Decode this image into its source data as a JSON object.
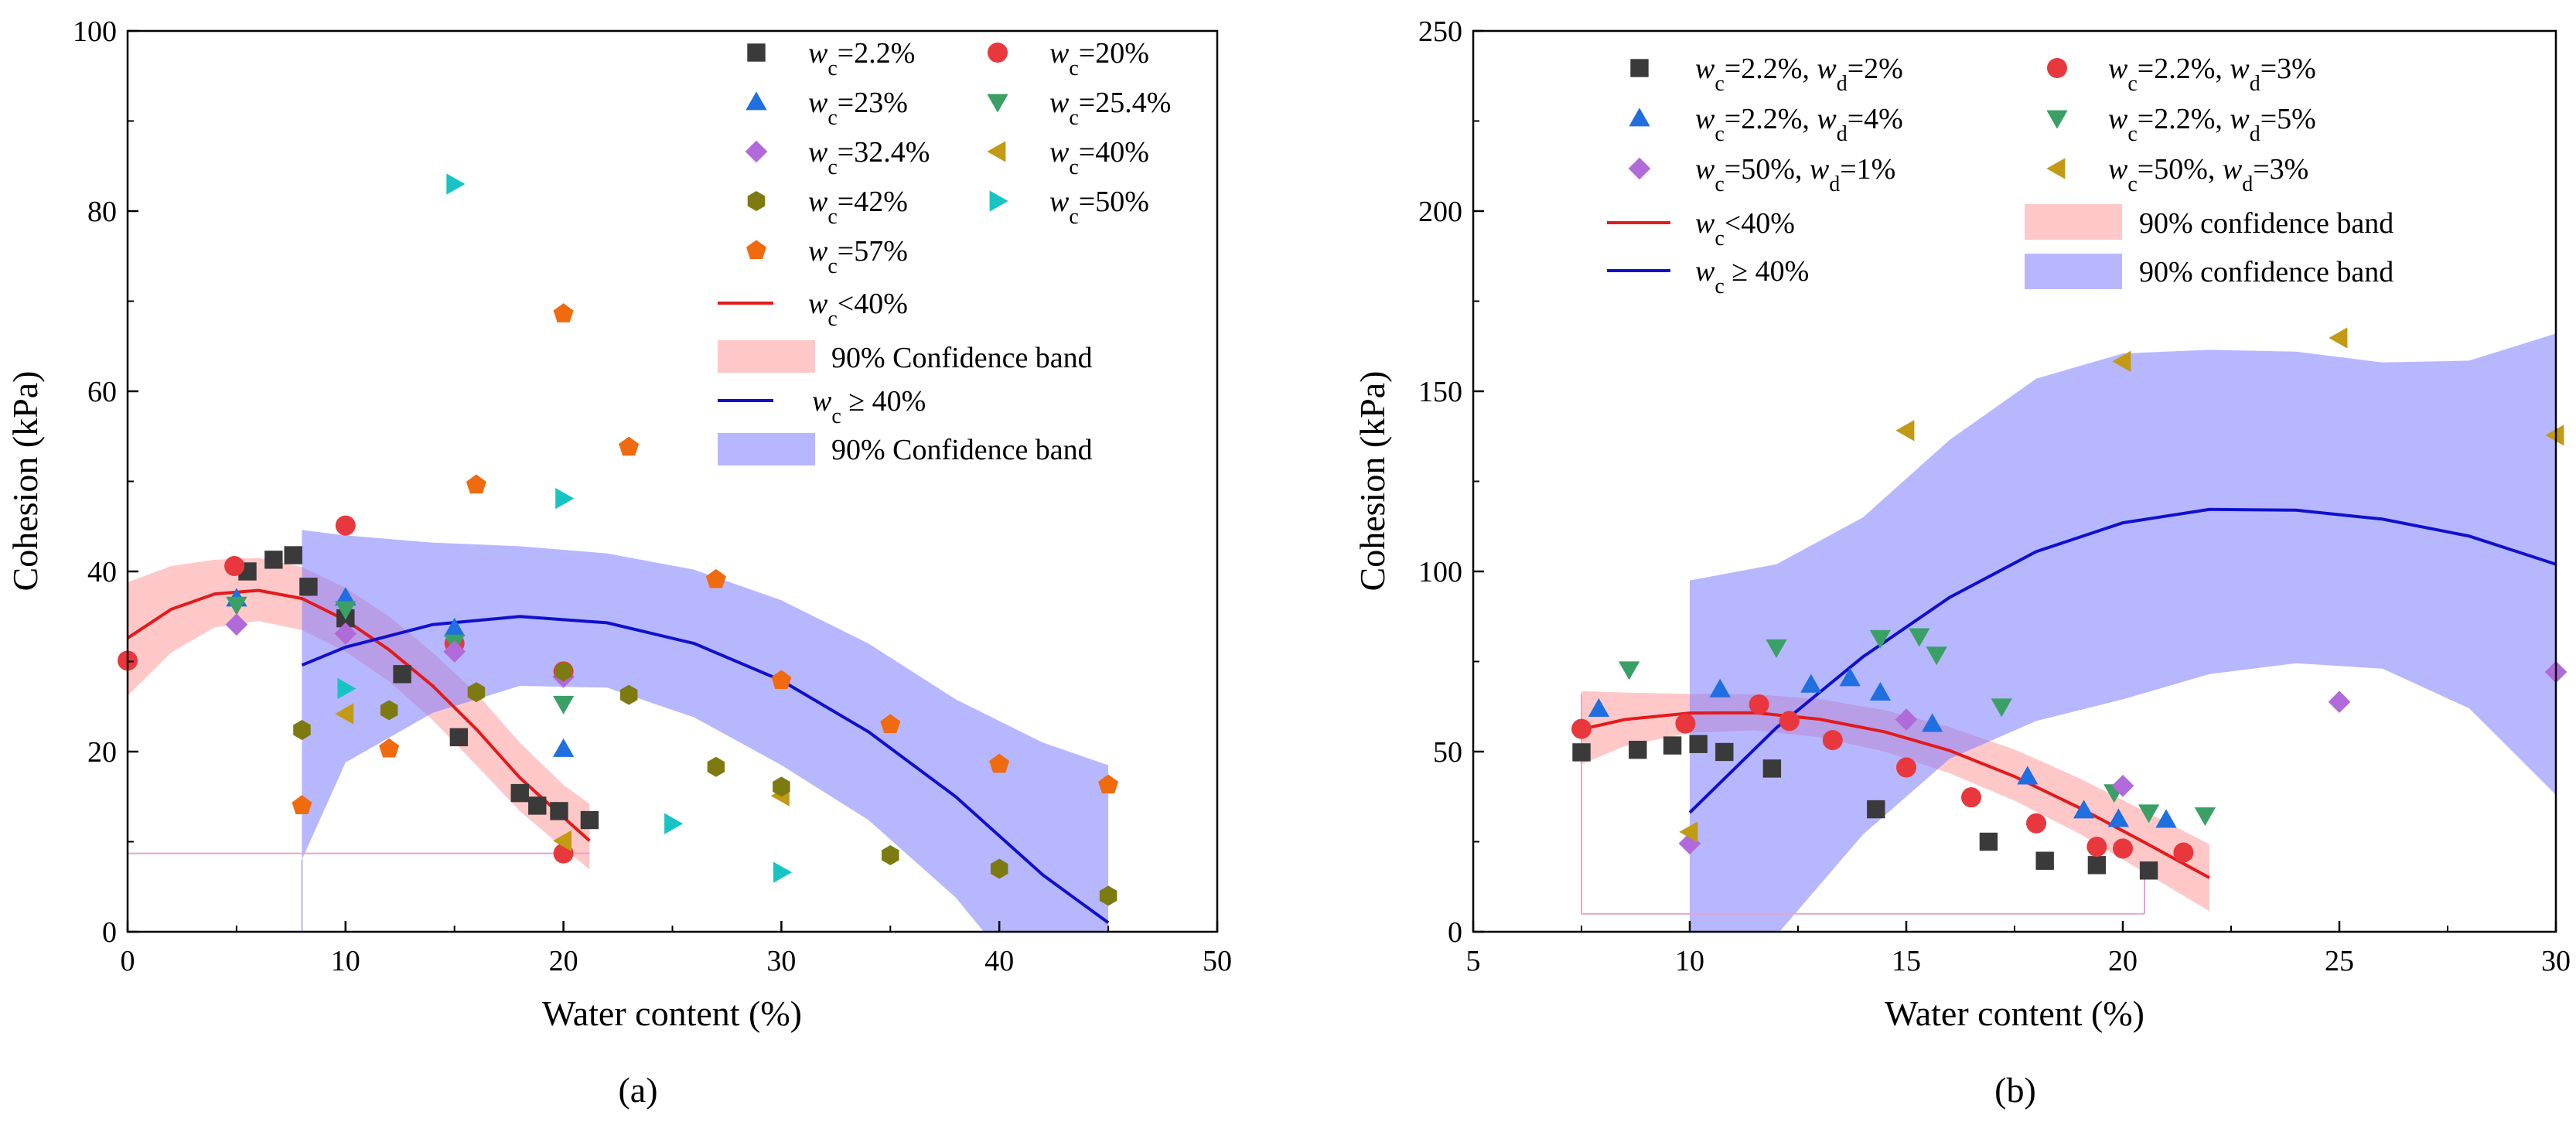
{
  "chart_data": [
    {
      "panel": "a",
      "caption": "(a)",
      "type": "scatter",
      "xlabel": "Water content (%)",
      "ylabel": "Cohesion (kPa)",
      "xlim": [
        0,
        50
      ],
      "ylim": [
        0,
        100
      ],
      "xticks": [
        0,
        10,
        20,
        30,
        40,
        50
      ],
      "yticks": [
        0,
        20,
        40,
        60,
        80,
        100
      ],
      "legend_position": "top-right",
      "series": [
        {
          "name": "wc=2.2%",
          "sub": "c",
          "val": "2.2%",
          "color": "#3a3a3a",
          "marker": "square",
          "x": [
            5.5,
            6.7,
            7.6,
            8.3,
            10.0,
            12.6,
            15.2,
            18.0,
            18.8,
            19.8,
            21.2
          ],
          "y": [
            40.0,
            41.3,
            41.8,
            38.3,
            34.8,
            28.6,
            21.6,
            15.4,
            14.0,
            13.4,
            12.4
          ]
        },
        {
          "name": "wc=20%",
          "sub": "c",
          "val": "20%",
          "color": "#e8383d",
          "marker": "circle",
          "x": [
            0.0,
            4.9,
            10.0,
            15.0,
            20.0,
            20.0
          ],
          "y": [
            30.1,
            40.6,
            45.1,
            32.0,
            28.9,
            8.7
          ]
        },
        {
          "name": "wc=23%",
          "sub": "c",
          "val": "23%",
          "color": "#1f6fe0",
          "marker": "triangle-up",
          "x": [
            5.0,
            10.0,
            15.0,
            20.0
          ],
          "y": [
            37.0,
            37.1,
            33.7,
            20.3
          ]
        },
        {
          "name": "wc=25.4%",
          "sub": "c",
          "val": "25.4%",
          "color": "#3aa066",
          "marker": "triangle-down",
          "x": [
            5.0,
            10.0,
            15.0,
            20.0
          ],
          "y": [
            36.3,
            35.8,
            32.1,
            25.3
          ]
        },
        {
          "name": "wc=32.4%",
          "sub": "c",
          "val": "32.4%",
          "color": "#b06ad9",
          "marker": "diamond",
          "x": [
            5.0,
            10.0,
            15.0,
            20.0
          ],
          "y": [
            34.1,
            33.1,
            31.1,
            28.3
          ]
        },
        {
          "name": "wc=40%",
          "sub": "c",
          "val": "40%",
          "color": "#c29a14",
          "marker": "triangle-left",
          "x": [
            10.0,
            20.0,
            30.0
          ],
          "y": [
            24.2,
            10.1,
            15.1
          ]
        },
        {
          "name": "wc=42%",
          "sub": "c",
          "val": "42%",
          "color": "#7d7a12",
          "marker": "hexagon",
          "x": [
            8.0,
            12.0,
            16.0,
            20.0,
            23.0,
            27.0,
            30.0,
            35.0,
            40.0,
            45.0
          ],
          "y": [
            22.4,
            24.6,
            26.6,
            28.9,
            26.3,
            18.3,
            16.1,
            8.5,
            7.0,
            4.0
          ]
        },
        {
          "name": "wc=50%",
          "sub": "c",
          "val": "50%",
          "color": "#17c4c4",
          "marker": "triangle-right",
          "x": [
            10.0,
            15.0,
            20.0,
            25.0,
            30.0
          ],
          "y": [
            27.0,
            83.0,
            48.1,
            12.0,
            6.6
          ]
        },
        {
          "name": "wc=57%",
          "sub": "c",
          "val": "57%",
          "color": "#f06a10",
          "marker": "pentagon",
          "x": [
            8.0,
            12.0,
            16.0,
            20.0,
            23.0,
            27.0,
            30.0,
            35.0,
            40.0,
            45.0
          ],
          "y": [
            14.0,
            20.3,
            49.6,
            68.6,
            53.8,
            39.1,
            27.9,
            23.0,
            18.6,
            16.3
          ]
        }
      ],
      "fits": [
        {
          "name": "wc<40%",
          "label_pre": "w",
          "sub": "c",
          "label_post": "<40%",
          "color": "#e31a1c",
          "band_color": "#ff9a9a",
          "band_label": "90% Confidence band",
          "x": [
            0,
            2,
            4,
            6,
            8,
            10,
            12,
            14,
            16,
            18,
            20,
            21.2
          ],
          "y": [
            32.6,
            35.8,
            37.5,
            37.9,
            37.0,
            34.6,
            31.3,
            27.3,
            22.5,
            17.1,
            12.7,
            10.1
          ],
          "upper": [
            38.8,
            40.6,
            41.3,
            41.5,
            40.5,
            38.2,
            35.0,
            31.0,
            26.5,
            21.0,
            16.3,
            14.2
          ],
          "lower": [
            26.2,
            31.0,
            33.8,
            34.5,
            33.5,
            31.1,
            27.8,
            23.5,
            18.5,
            13.4,
            9.3,
            6.9
          ]
        },
        {
          "name": "wc≥40%",
          "label_pre": "w",
          "sub": "c",
          "label_post": "≥ 40%",
          "color": "#1010cc",
          "band_color": "#7b7bff",
          "band_label": "90% Confidence band",
          "x": [
            8,
            10,
            14,
            18,
            22,
            26,
            30,
            34,
            38,
            42,
            45
          ],
          "y": [
            29.6,
            31.6,
            34.1,
            35.0,
            34.3,
            32.0,
            27.9,
            22.2,
            15.0,
            6.3,
            1.0
          ],
          "upper": [
            44.6,
            44.0,
            43.2,
            42.8,
            42.0,
            40.2,
            36.8,
            32.0,
            25.8,
            21.0,
            18.5
          ],
          "lower": [
            8.0,
            18.8,
            24.3,
            27.3,
            27.1,
            23.8,
            18.5,
            12.4,
            3.8,
            -8.0,
            -16.0
          ]
        }
      ],
      "annotations": [
        {
          "type": "guide",
          "color": "#e7a3c9",
          "x0": 0,
          "x1": 21.2,
          "y": 8.7
        },
        {
          "type": "guide",
          "color": "#b8b8ee",
          "x": 8,
          "y0": 0,
          "y1": 8.0
        }
      ]
    },
    {
      "panel": "b",
      "caption": "(b)",
      "type": "scatter",
      "xlabel": "Water content (%)",
      "ylabel": "Cohesion (kPa)",
      "xlim": [
        5,
        30
      ],
      "ylim": [
        0,
        250
      ],
      "xticks": [
        5,
        10,
        15,
        20,
        25,
        30
      ],
      "yticks": [
        0,
        50,
        100,
        150,
        200,
        250
      ],
      "legend_position": "top",
      "series": [
        {
          "name": "wc=2.2%, wd=2%",
          "wc": "2.2%",
          "wd": "2%",
          "color": "#3a3a3a",
          "marker": "square",
          "x": [
            7.5,
            8.8,
            9.6,
            10.2,
            10.8,
            11.9,
            14.3,
            16.9,
            18.2,
            19.4,
            20.6
          ],
          "y": [
            49.8,
            50.5,
            51.7,
            52.1,
            49.9,
            45.3,
            34.0,
            25.0,
            19.7,
            18.5,
            17.0
          ]
        },
        {
          "name": "wc=2.2%, wd=3%",
          "wc": "2.2%",
          "wd": "3%",
          "color": "#e8383d",
          "marker": "circle",
          "x": [
            7.5,
            9.9,
            11.6,
            12.3,
            13.3,
            15.0,
            16.5,
            18.0,
            19.4,
            20.0,
            21.4
          ],
          "y": [
            56.3,
            57.8,
            63.1,
            58.5,
            53.2,
            45.6,
            37.3,
            30.1,
            23.6,
            23.1,
            22.0
          ]
        },
        {
          "name": "wc=2.2%, wd=4%",
          "wc": "2.2%",
          "wd": "4%",
          "color": "#1f6fe0",
          "marker": "triangle-up",
          "x": [
            7.9,
            10.7,
            12.8,
            13.7,
            14.4,
            15.6,
            17.8,
            19.1,
            19.9,
            21.0
          ],
          "y": [
            61.9,
            67.3,
            68.6,
            70.4,
            66.4,
            57.7,
            43.1,
            33.7,
            31.3,
            31.1
          ]
        },
        {
          "name": "wc=2.2%, wd=5%",
          "wc": "2.2%",
          "wd": "5%",
          "color": "#3aa066",
          "marker": "triangle-down",
          "x": [
            8.6,
            12.0,
            14.4,
            15.3,
            15.7,
            17.2,
            19.8,
            20.6,
            21.9
          ],
          "y": [
            72.8,
            78.9,
            81.5,
            82.0,
            76.9,
            62.5,
            38.7,
            33.1,
            32.3
          ]
        },
        {
          "name": "wc=50%, wd=1%",
          "wc": "50%",
          "wd": "1%",
          "color": "#b06ad9",
          "marker": "diamond",
          "x": [
            10.0,
            15.0,
            20.0,
            25.0,
            30.0
          ],
          "y": [
            24.5,
            58.9,
            40.5,
            63.8,
            72.1
          ]
        },
        {
          "name": "wc=50%, wd=3%",
          "wc": "50%",
          "wd": "3%",
          "color": "#c29a14",
          "marker": "triangle-left",
          "x": [
            10.0,
            15.0,
            20.0,
            25.0,
            30.0
          ],
          "y": [
            27.7,
            139.1,
            158.3,
            164.8,
            137.8
          ]
        }
      ],
      "fits": [
        {
          "name": "wc<40%",
          "label_pre": "w",
          "sub": "c",
          "label_post": "<40%",
          "color": "#e31a1c",
          "band_color": "#ff9a9a",
          "band_label": "90% confidence band",
          "x": [
            7.5,
            8.5,
            10,
            11.5,
            13,
            14.5,
            16,
            17.5,
            19,
            20.5,
            22
          ],
          "y": [
            56.2,
            58.9,
            60.7,
            60.8,
            59.0,
            55.5,
            50.3,
            43.1,
            34.4,
            24.8,
            15.0
          ],
          "upper": [
            66.8,
            66.4,
            66.0,
            65.9,
            64.6,
            61.5,
            56.8,
            50.6,
            42.6,
            33.5,
            24.3
          ],
          "lower": [
            46.5,
            51.5,
            55.2,
            55.9,
            54.0,
            50.0,
            44.0,
            36.4,
            27.2,
            16.5,
            5.7
          ]
        },
        {
          "name": "wc≥40%",
          "label_pre": "w",
          "sub": "c",
          "label_post": "≥ 40%",
          "color": "#1010cc",
          "band_color": "#7b7bff",
          "band_label": "90% confidence band",
          "x": [
            10,
            12,
            14,
            16,
            18,
            20,
            22,
            24,
            26,
            28,
            30
          ],
          "y": [
            33.1,
            56.6,
            76.3,
            92.8,
            105.5,
            113.5,
            117.2,
            117.0,
            114.5,
            109.8,
            102.0
          ],
          "upper": [
            97.5,
            102.0,
            115.0,
            136.5,
            153.5,
            160.5,
            161.5,
            161.0,
            158.0,
            158.5,
            166.0
          ],
          "lower": [
            -12.0,
            -1.0,
            27.0,
            48.0,
            58.5,
            64.5,
            71.5,
            74.5,
            73.0,
            62.0,
            38.0
          ]
        }
      ],
      "annotations": [
        {
          "type": "guide",
          "color": "#e7a3c9",
          "x0": 7.5,
          "x1": 20.5,
          "y": 5
        }
      ]
    }
  ]
}
